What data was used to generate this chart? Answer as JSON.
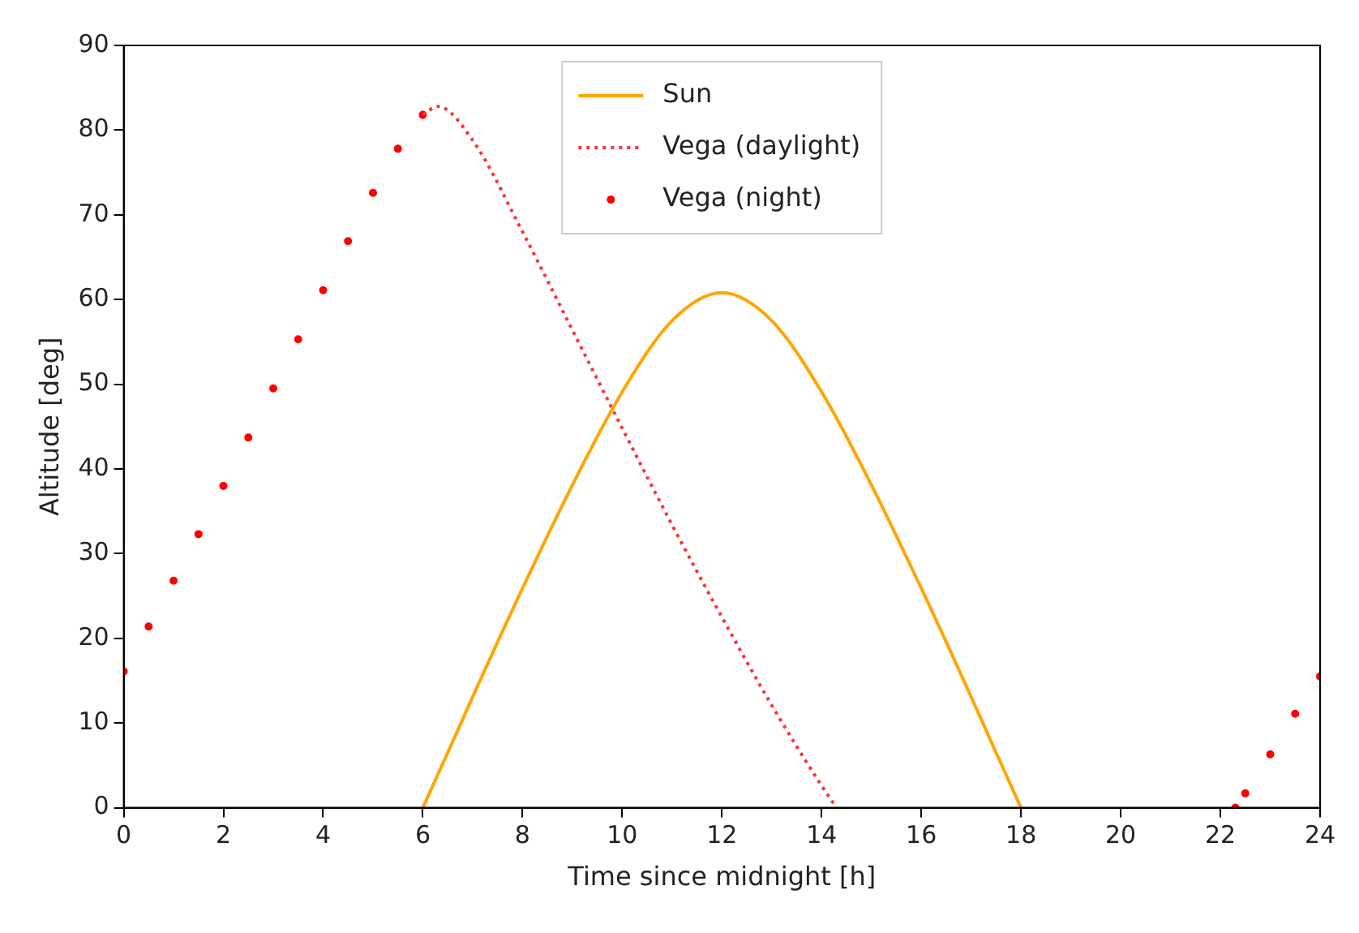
{
  "chart_data": {
    "type": "line",
    "xlabel": "Time since midnight [h]",
    "ylabel": "Altitude [deg]",
    "xlim": [
      0,
      24
    ],
    "xticks": [
      0,
      2,
      4,
      6,
      8,
      10,
      12,
      14,
      16,
      18,
      20,
      22,
      24
    ],
    "ylim": [
      0,
      90
    ],
    "yticks": [
      0,
      10,
      20,
      30,
      40,
      50,
      60,
      70,
      80,
      90
    ],
    "grid": false,
    "legend": "top",
    "series": [
      {
        "name": "Sun",
        "type": "line",
        "color": "#ffa500",
        "line_style": "solid",
        "marker": "none",
        "x": [
          6,
          6.5,
          7,
          8,
          9,
          10,
          11,
          12,
          13,
          14,
          15,
          16,
          17,
          17.5,
          18
        ],
        "values": [
          0,
          6.5,
          13.1,
          25.9,
          38.1,
          49.1,
          57.5,
          60.8,
          57.5,
          49.1,
          38.1,
          25.9,
          13.1,
          6.5,
          0
        ]
      },
      {
        "name": "Vega (daylight)",
        "type": "line",
        "color": "#ff3333",
        "line_style": "dotted",
        "marker": "none",
        "x": [
          6,
          6.3,
          7,
          8,
          9,
          10,
          11,
          12,
          13,
          14,
          14.3
        ],
        "values": [
          81.8,
          82.8,
          78.8,
          68.0,
          56.4,
          44.8,
          33.4,
          22.5,
          12.1,
          2.6,
          0
        ]
      },
      {
        "name": "Vega (night)",
        "type": "scatter",
        "color": "#ff0000",
        "marker": "circle",
        "x": [
          0,
          0.5,
          1,
          1.5,
          2,
          2.5,
          3,
          3.5,
          4,
          4.5,
          5,
          5.5,
          6,
          22.3,
          22.5,
          23,
          23.5,
          24
        ],
        "values": [
          16.1,
          21.4,
          26.8,
          32.3,
          38.0,
          43.7,
          49.5,
          55.3,
          61.1,
          66.9,
          72.6,
          77.8,
          81.8,
          0,
          1.7,
          6.3,
          11.1,
          15.5
        ]
      }
    ]
  }
}
